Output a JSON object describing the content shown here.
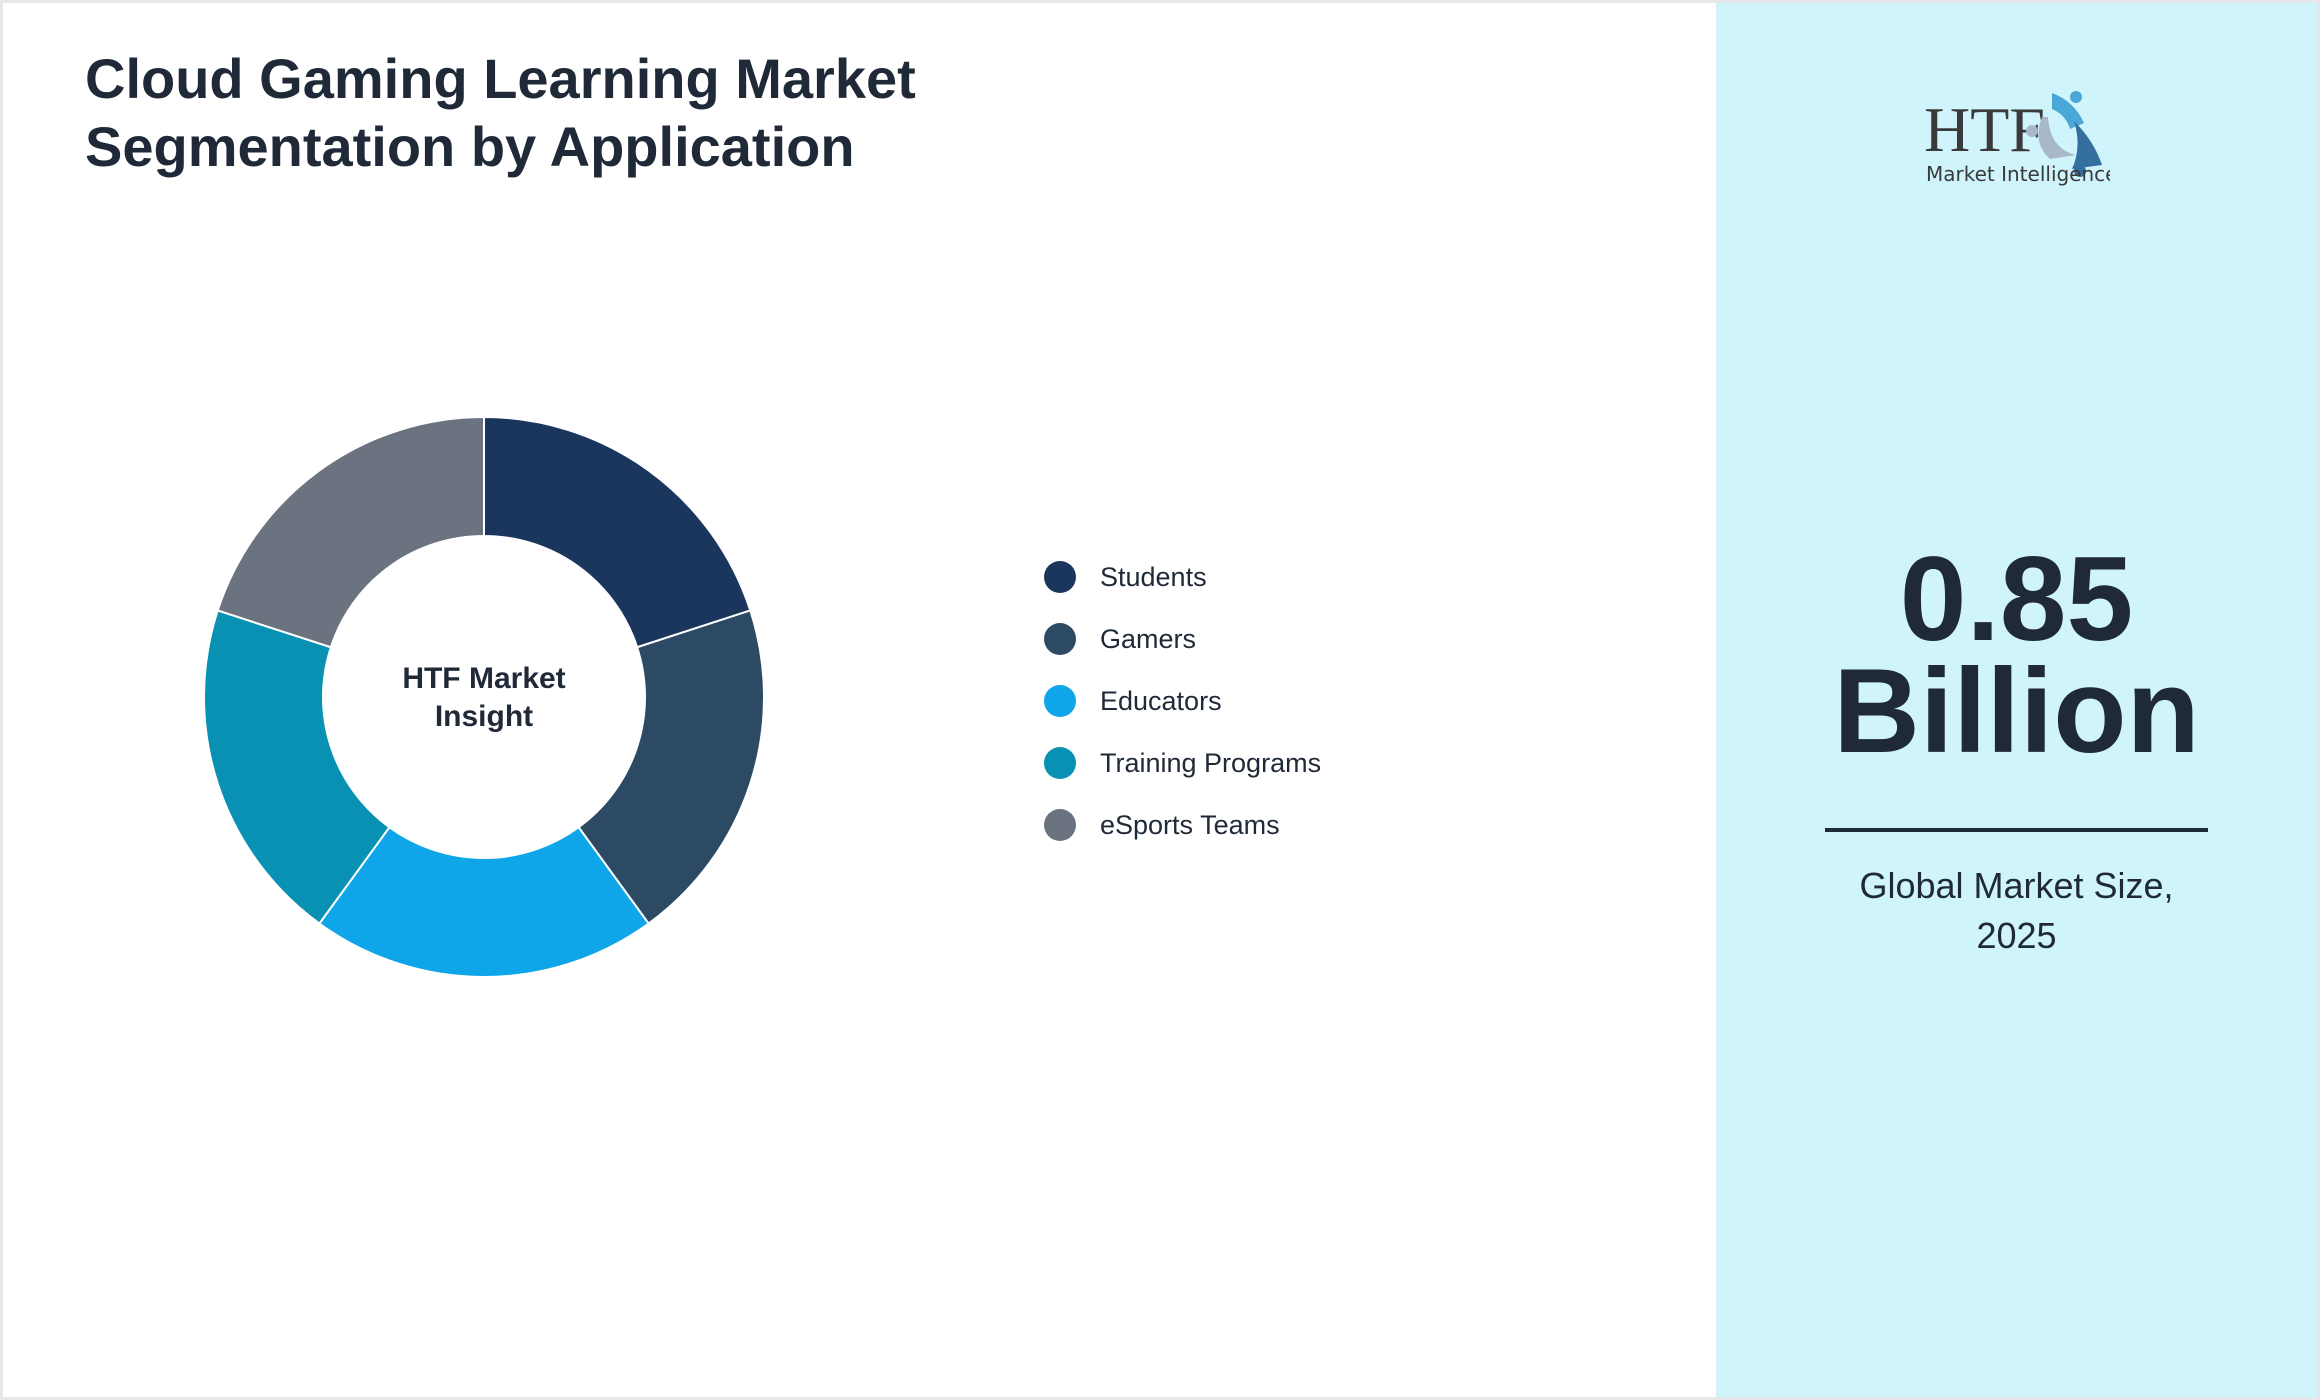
{
  "title_line1": "Cloud Gaming Learning Market",
  "title_line2": "Segmentation by Application",
  "chart_data": {
    "type": "pie",
    "subtype": "donut",
    "center_label_line1": "HTF Market",
    "center_label_line2": "Insight",
    "categories": [
      "Students",
      "Gamers",
      "Educators",
      "Training Programs",
      "eSports Teams"
    ],
    "values": [
      20,
      20,
      20,
      20,
      20
    ],
    "colors": [
      "#1b365d",
      "#2d4a65",
      "#0ea5e9",
      "#0891b2",
      "#6b7280"
    ],
    "legend_position": "right"
  },
  "logo": {
    "text_main": "HTF",
    "text_sub": "Market Intelligence"
  },
  "market": {
    "value": "0.85",
    "unit": "Billion",
    "label_line1": "Global Market Size,",
    "label_line2": "2025"
  },
  "colors": {
    "panel_bg": "#cff4fc",
    "text": "#1f2937"
  }
}
